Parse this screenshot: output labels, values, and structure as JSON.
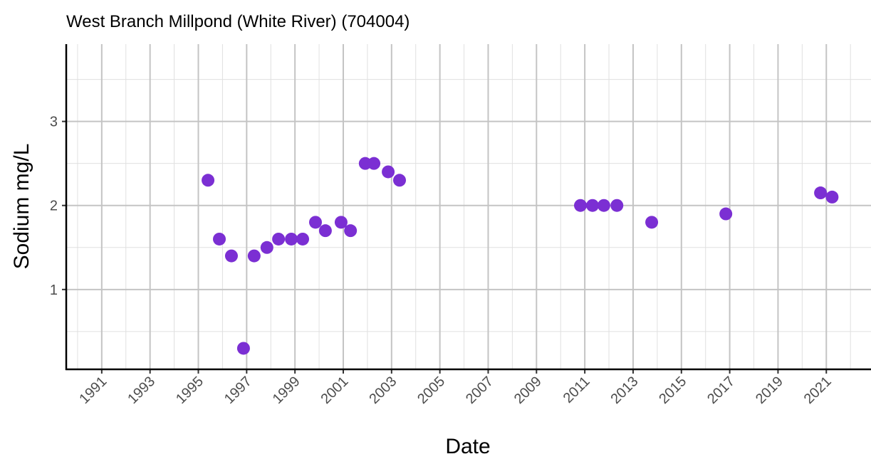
{
  "chart_data": {
    "type": "scatter",
    "title": "West Branch Millpond (White River) (704004)",
    "x_label": "Date",
    "y_label": "Sodium mg/L",
    "color": "#7b2fd3",
    "grid": true,
    "x": [
      1995.4,
      1995.87,
      1996.37,
      1996.87,
      1997.31,
      1997.84,
      1998.32,
      1998.85,
      1999.32,
      1999.85,
      2000.26,
      2000.91,
      2001.3,
      2001.91,
      2002.27,
      2002.86,
      2003.33,
      2010.82,
      2011.32,
      2011.79,
      2012.33,
      2013.77,
      2016.84,
      2020.76,
      2021.24
    ],
    "values": [
      2.3,
      1.6,
      1.4,
      0.3,
      1.4,
      1.5,
      1.6,
      1.6,
      1.6,
      1.8,
      1.7,
      1.8,
      1.7,
      2.5,
      2.5,
      2.4,
      2.3,
      2.0,
      2.0,
      2.0,
      2.0,
      1.8,
      1.9,
      2.15,
      2.1
    ],
    "xlim": [
      1989.53,
      2022.85
    ],
    "xticks": [
      1991,
      1993,
      1995,
      1997,
      1999,
      2001,
      2003,
      2005,
      2007,
      2009,
      2011,
      2013,
      2015,
      2017,
      2019,
      2021
    ],
    "ylim": [
      0.05,
      3.92
    ],
    "yticks": [
      1,
      2,
      3
    ]
  }
}
